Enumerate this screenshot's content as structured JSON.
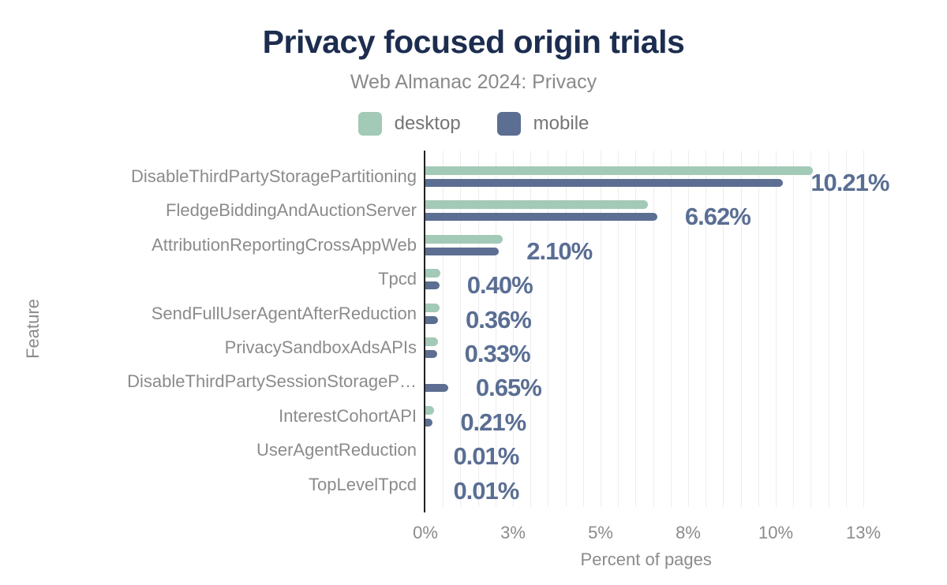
{
  "header": {
    "title": "Privacy focused origin trials",
    "subtitle": "Web Almanac 2024: Privacy"
  },
  "legend": [
    {
      "label": "desktop",
      "color": "#a3c9b7"
    },
    {
      "label": "mobile",
      "color": "#5c6e91"
    }
  ],
  "colors": {
    "title": "#1c2d4f",
    "subtitle": "#8a8a8a",
    "axis_text": "#8b8b8b",
    "desktop_bar": "#a3c9b7",
    "mobile_bar": "#5c6e91",
    "value_label": "#5a6e93",
    "gridline": "#ededed",
    "axis_line": "#212121"
  },
  "chart_data": {
    "type": "bar",
    "orientation": "horizontal",
    "title": "Privacy focused origin trials",
    "subtitle": "Web Almanac 2024: Privacy",
    "xlabel": "Percent of pages",
    "ylabel": "Feature",
    "xlim": [
      0,
      12.6
    ],
    "x_ticks": [
      0,
      2.5,
      5,
      7.5,
      10,
      12.5
    ],
    "x_tick_labels": [
      "0%",
      "3%",
      "5%",
      "8%",
      "10%",
      "13%"
    ],
    "minor_grid_step_pct": 0.5,
    "grid": "vertical",
    "legend_position": "top",
    "categories": [
      "DisableThirdPartyStoragePartitioning",
      "FledgeBiddingAndAuctionServer",
      "AttributionReportingCrossAppWeb",
      "Tpcd",
      "SendFullUserAgentAfterReduction",
      "PrivacySandboxAdsAPIs",
      "DisableThirdPartySessionStorageP…",
      "InterestCohortAPI",
      "UserAgentReduction",
      "TopLevelTpcd"
    ],
    "series": [
      {
        "name": "desktop",
        "values": [
          11.05,
          6.35,
          2.2,
          0.43,
          0.4,
          0.36,
          0,
          0.25,
          0.01,
          0.01
        ]
      },
      {
        "name": "mobile",
        "values": [
          10.21,
          6.62,
          2.1,
          0.4,
          0.36,
          0.33,
          0.65,
          0.21,
          0.01,
          0.01
        ]
      }
    ],
    "data_labels": [
      "10.21%",
      "6.62%",
      "2.10%",
      "0.40%",
      "0.36%",
      "0.33%",
      "0.65%",
      "0.21%",
      "0.01%",
      "0.01%"
    ],
    "data_label_series": "mobile"
  }
}
